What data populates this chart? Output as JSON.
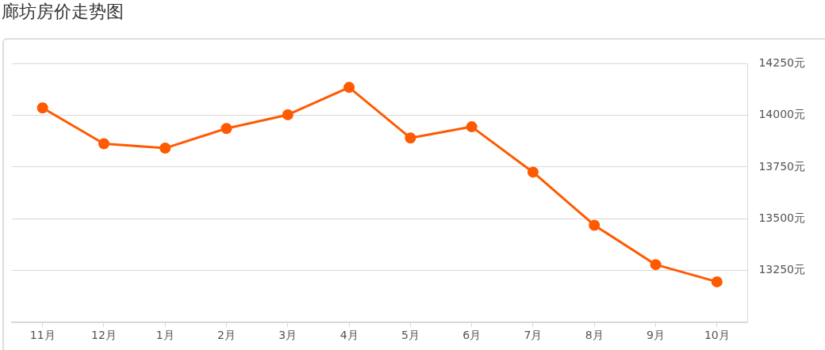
{
  "chart_data": {
    "type": "line",
    "title": "廊坊房价走势图",
    "categories": [
      "11月",
      "12月",
      "1月",
      "2月",
      "3月",
      "4月",
      "5月",
      "6月",
      "7月",
      "8月",
      "9月",
      "10月"
    ],
    "series": [
      {
        "color": "#ff5a00",
        "values": [
          14035,
          13862,
          13841,
          13936,
          14002,
          14134,
          13890,
          13944,
          13725,
          13469,
          13279,
          13196
        ]
      }
    ],
    "ylim": [
      13000,
      14250
    ],
    "yticks": [
      {
        "value": 13250,
        "label": "13250元"
      },
      {
        "value": 13500,
        "label": "13500元"
      },
      {
        "value": 13750,
        "label": "13750元"
      },
      {
        "value": 14000,
        "label": "14000元"
      },
      {
        "value": 14250,
        "label": "14250元"
      }
    ],
    "grid": "y",
    "marker": "circle",
    "line_style": "solid",
    "legend": false
  }
}
